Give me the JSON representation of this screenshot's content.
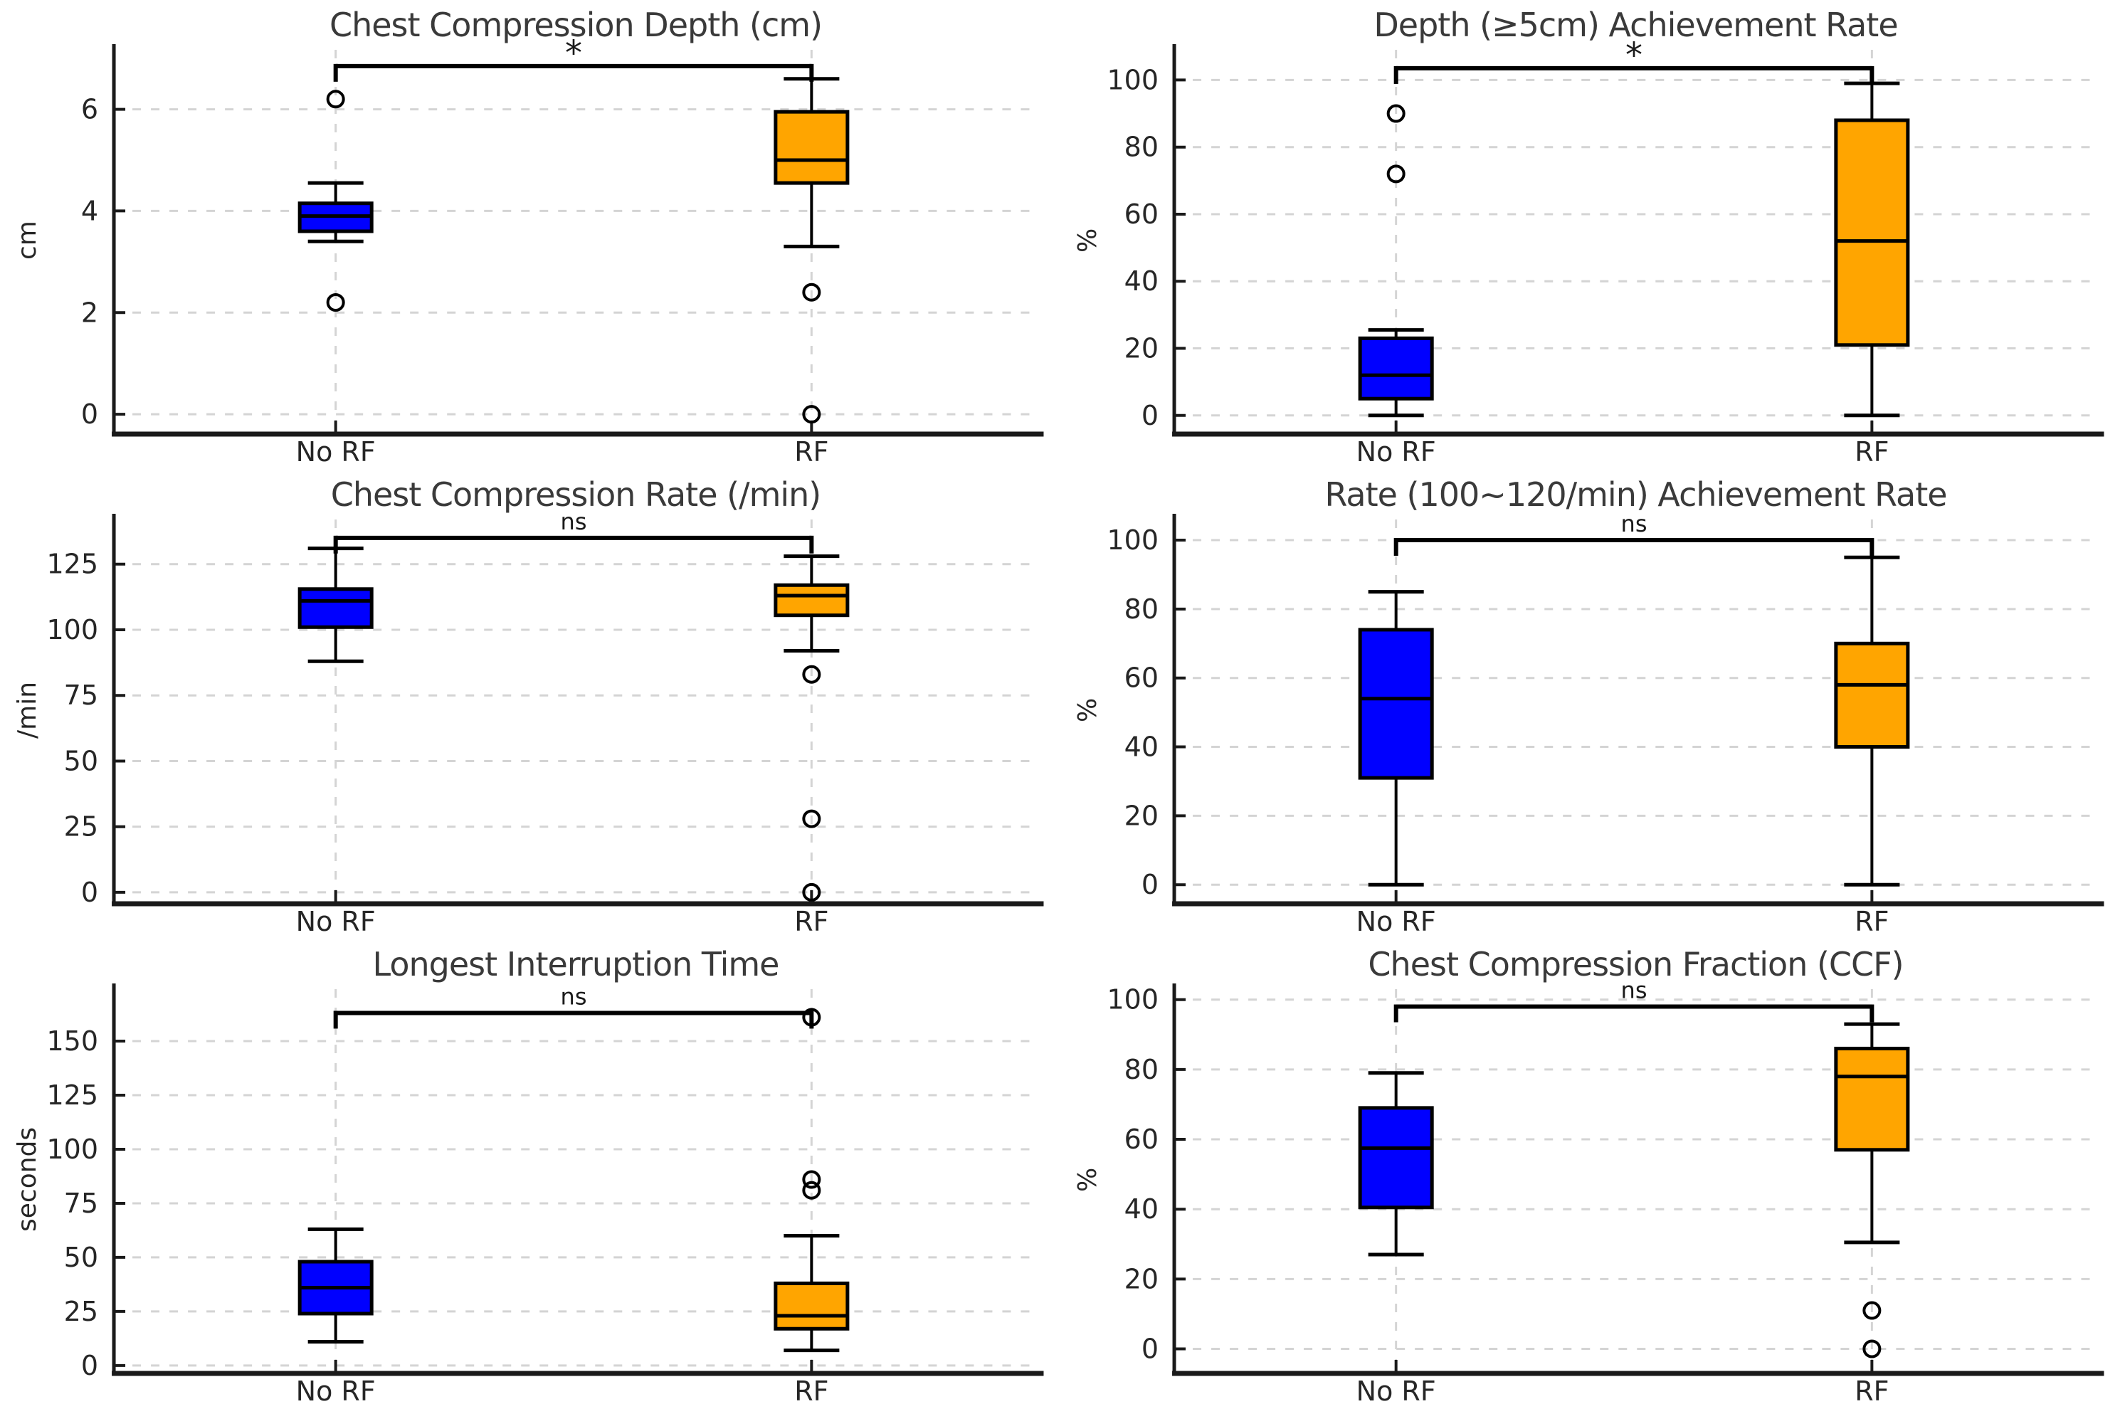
{
  "figure": {
    "background": "#ffffff",
    "categories": [
      "No RF",
      "RF"
    ],
    "colors": {
      "no_rf_fill": "#0000ff",
      "rf_fill": "#ffa500",
      "box_edge": "#000000",
      "grid": "#d4d4d4",
      "spine": "#1a1a1a",
      "text": "#262626",
      "title_text": "#3a3a3a"
    }
  },
  "chart_data": [
    {
      "type": "box",
      "title": "Chest Compression Depth (cm)",
      "ylabel": "cm",
      "yticks": [
        0,
        2,
        4,
        6
      ],
      "ylim": [
        -0.32,
        7.17
      ],
      "grid": true,
      "significance": {
        "label": "*",
        "y": 6.85
      },
      "categories": [
        "No RF",
        "RF"
      ],
      "series": [
        {
          "name": "No RF",
          "color": "#0000ff",
          "whisker_low": 3.4,
          "q1": 3.6,
          "median": 3.9,
          "q3": 4.15,
          "whisker_high": 4.55,
          "outliers": [
            6.2,
            2.2
          ]
        },
        {
          "name": "RF",
          "color": "#ffa500",
          "whisker_low": 3.3,
          "q1": 4.55,
          "median": 5.0,
          "q3": 5.95,
          "whisker_high": 6.6,
          "outliers": [
            2.4,
            0.0
          ]
        }
      ]
    },
    {
      "type": "box",
      "title": "Depth (≥5cm) Achievement Rate",
      "ylabel": "%",
      "yticks": [
        0,
        20,
        40,
        60,
        80,
        100
      ],
      "ylim": [
        -4.5,
        109
      ],
      "grid": true,
      "significance": {
        "label": "*",
        "y": 103.5
      },
      "categories": [
        "No RF",
        "RF"
      ],
      "series": [
        {
          "name": "No RF",
          "color": "#0000ff",
          "whisker_low": 0,
          "q1": 5,
          "median": 12,
          "q3": 23,
          "whisker_high": 25.5,
          "outliers": [
            90,
            72
          ]
        },
        {
          "name": "RF",
          "color": "#ffa500",
          "whisker_low": 0,
          "q1": 21,
          "median": 52,
          "q3": 88,
          "whisker_high": 99,
          "outliers": []
        }
      ]
    },
    {
      "type": "box",
      "title": "Chest Compression Rate (/min)",
      "ylabel": "/min",
      "yticks": [
        0,
        25,
        50,
        75,
        100,
        125
      ],
      "ylim": [
        -3,
        142
      ],
      "grid": true,
      "significance": {
        "label": "ns",
        "y": 135
      },
      "categories": [
        "No RF",
        "RF"
      ],
      "series": [
        {
          "name": "No RF",
          "color": "#0000ff",
          "whisker_low": 88,
          "q1": 101,
          "median": 111,
          "q3": 115.5,
          "whisker_high": 131,
          "outliers": []
        },
        {
          "name": "RF",
          "color": "#ffa500",
          "whisker_low": 92,
          "q1": 105.5,
          "median": 113,
          "q3": 117,
          "whisker_high": 128,
          "outliers": [
            83,
            28,
            0
          ]
        }
      ]
    },
    {
      "type": "box",
      "title": "Rate (100~120/min) Achievement Rate",
      "ylabel": "%",
      "yticks": [
        0,
        20,
        40,
        60,
        80,
        100
      ],
      "ylim": [
        -4.5,
        106
      ],
      "grid": true,
      "significance": {
        "label": "ns",
        "y": 100
      },
      "categories": [
        "No RF",
        "RF"
      ],
      "series": [
        {
          "name": "No RF",
          "color": "#0000ff",
          "whisker_low": 0,
          "q1": 31,
          "median": 54,
          "q3": 74,
          "whisker_high": 85,
          "outliers": []
        },
        {
          "name": "RF",
          "color": "#ffa500",
          "whisker_low": 0,
          "q1": 40,
          "median": 58,
          "q3": 70,
          "whisker_high": 95,
          "outliers": []
        }
      ]
    },
    {
      "type": "box",
      "title": "Longest Interruption Time",
      "ylabel": "seconds",
      "yticks": [
        0,
        25,
        50,
        75,
        100,
        125,
        150
      ],
      "ylim": [
        -2,
        174
      ],
      "grid": true,
      "significance": {
        "label": "ns",
        "y": 163
      },
      "categories": [
        "No RF",
        "RF"
      ],
      "series": [
        {
          "name": "No RF",
          "color": "#0000ff",
          "whisker_low": 11,
          "q1": 24,
          "median": 36,
          "q3": 48,
          "whisker_high": 63,
          "outliers": []
        },
        {
          "name": "RF",
          "color": "#ffa500",
          "whisker_low": 7,
          "q1": 17,
          "median": 23,
          "q3": 38,
          "whisker_high": 60,
          "outliers": [
            161,
            86,
            81
          ]
        }
      ]
    },
    {
      "type": "box",
      "title": "Chest Compression Fraction (CCF)",
      "ylabel": "%",
      "yticks": [
        0,
        20,
        40,
        60,
        80,
        100
      ],
      "ylim": [
        -6,
        103
      ],
      "grid": true,
      "significance": {
        "label": "ns",
        "y": 98
      },
      "categories": [
        "No RF",
        "RF"
      ],
      "series": [
        {
          "name": "No RF",
          "color": "#0000ff",
          "whisker_low": 27,
          "q1": 40.5,
          "median": 57.5,
          "q3": 69,
          "whisker_high": 79,
          "outliers": []
        },
        {
          "name": "RF",
          "color": "#ffa500",
          "whisker_low": 30.5,
          "q1": 57,
          "median": 78,
          "q3": 86,
          "whisker_high": 93,
          "outliers": [
            11,
            0
          ]
        }
      ]
    }
  ]
}
